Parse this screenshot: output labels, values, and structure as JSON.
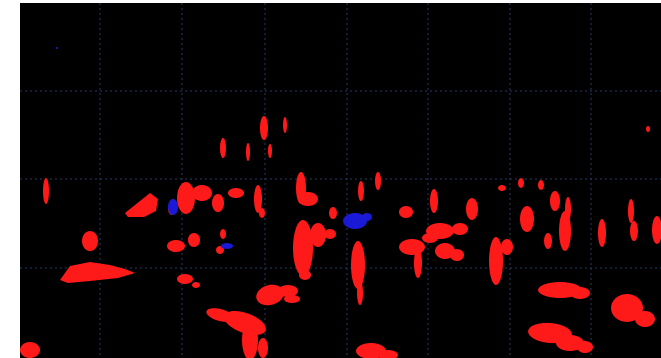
{
  "view": {
    "kind": "segmentation-mask",
    "background_color": "#000000",
    "border_color": "#ffffff",
    "grid": true,
    "grid_color": "#2a3a66",
    "grid_style": "dotted"
  },
  "classes": [
    {
      "name": "red-region",
      "color": "#ff1a1a"
    },
    {
      "name": "blue-region",
      "color": "#1a1ad6"
    }
  ]
}
